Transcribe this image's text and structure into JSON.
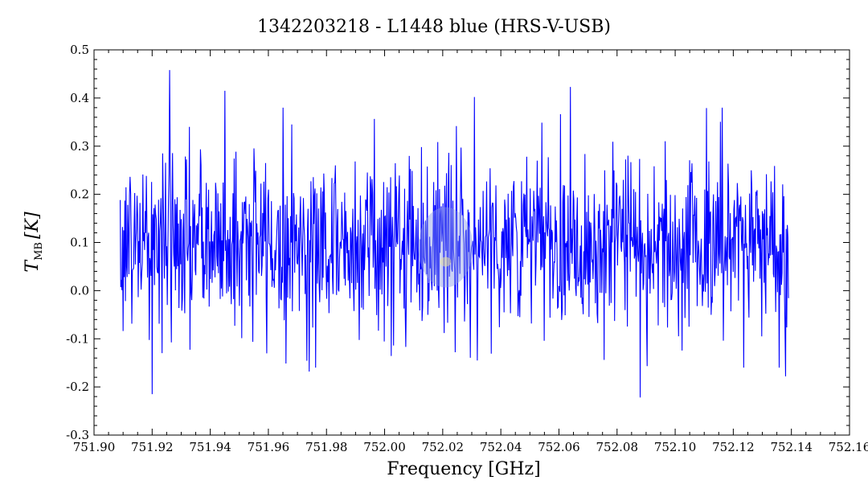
{
  "chart_data": {
    "type": "line",
    "title": "1342203218 - L1448 blue (HRS-V-USB)",
    "xlabel": "Frequency [GHz]",
    "ylabel": {
      "symbol": "T",
      "subscript": "MB",
      "unit": "[K]"
    },
    "xlim": [
      751.9,
      752.16
    ],
    "ylim": [
      -0.3,
      0.5
    ],
    "x_ticks": [
      "751.90",
      "751.92",
      "751.94",
      "751.96",
      "751.98",
      "752.00",
      "752.02",
      "752.04",
      "752.06",
      "752.08",
      "752.10",
      "752.12",
      "752.14",
      "752.16"
    ],
    "y_ticks": [
      "0.5",
      "0.4",
      "0.3",
      "0.2",
      "0.1",
      "0.0",
      "-0.1",
      "-0.2",
      "-0.3"
    ],
    "grid": false,
    "series": [
      {
        "color": "#0000ff",
        "x_range": [
          751.909,
          752.139
        ],
        "summary": {
          "mean": 0.1,
          "min": -0.222,
          "max": 0.458
        },
        "notable_points": [
          {
            "x": 751.92,
            "y": -0.215
          },
          {
            "x": 751.926,
            "y": 0.458
          },
          {
            "x": 751.945,
            "y": 0.415
          },
          {
            "x": 751.974,
            "y": -0.168
          },
          {
            "x": 752.031,
            "y": 0.402
          },
          {
            "x": 752.064,
            "y": 0.423
          },
          {
            "x": 752.088,
            "y": -0.222
          },
          {
            "x": 752.138,
            "y": -0.178
          }
        ]
      }
    ],
    "annotation": {
      "type": "ellipse",
      "center_x": 752.021,
      "center_y": 0.09,
      "color": "#8c9ce6"
    }
  }
}
